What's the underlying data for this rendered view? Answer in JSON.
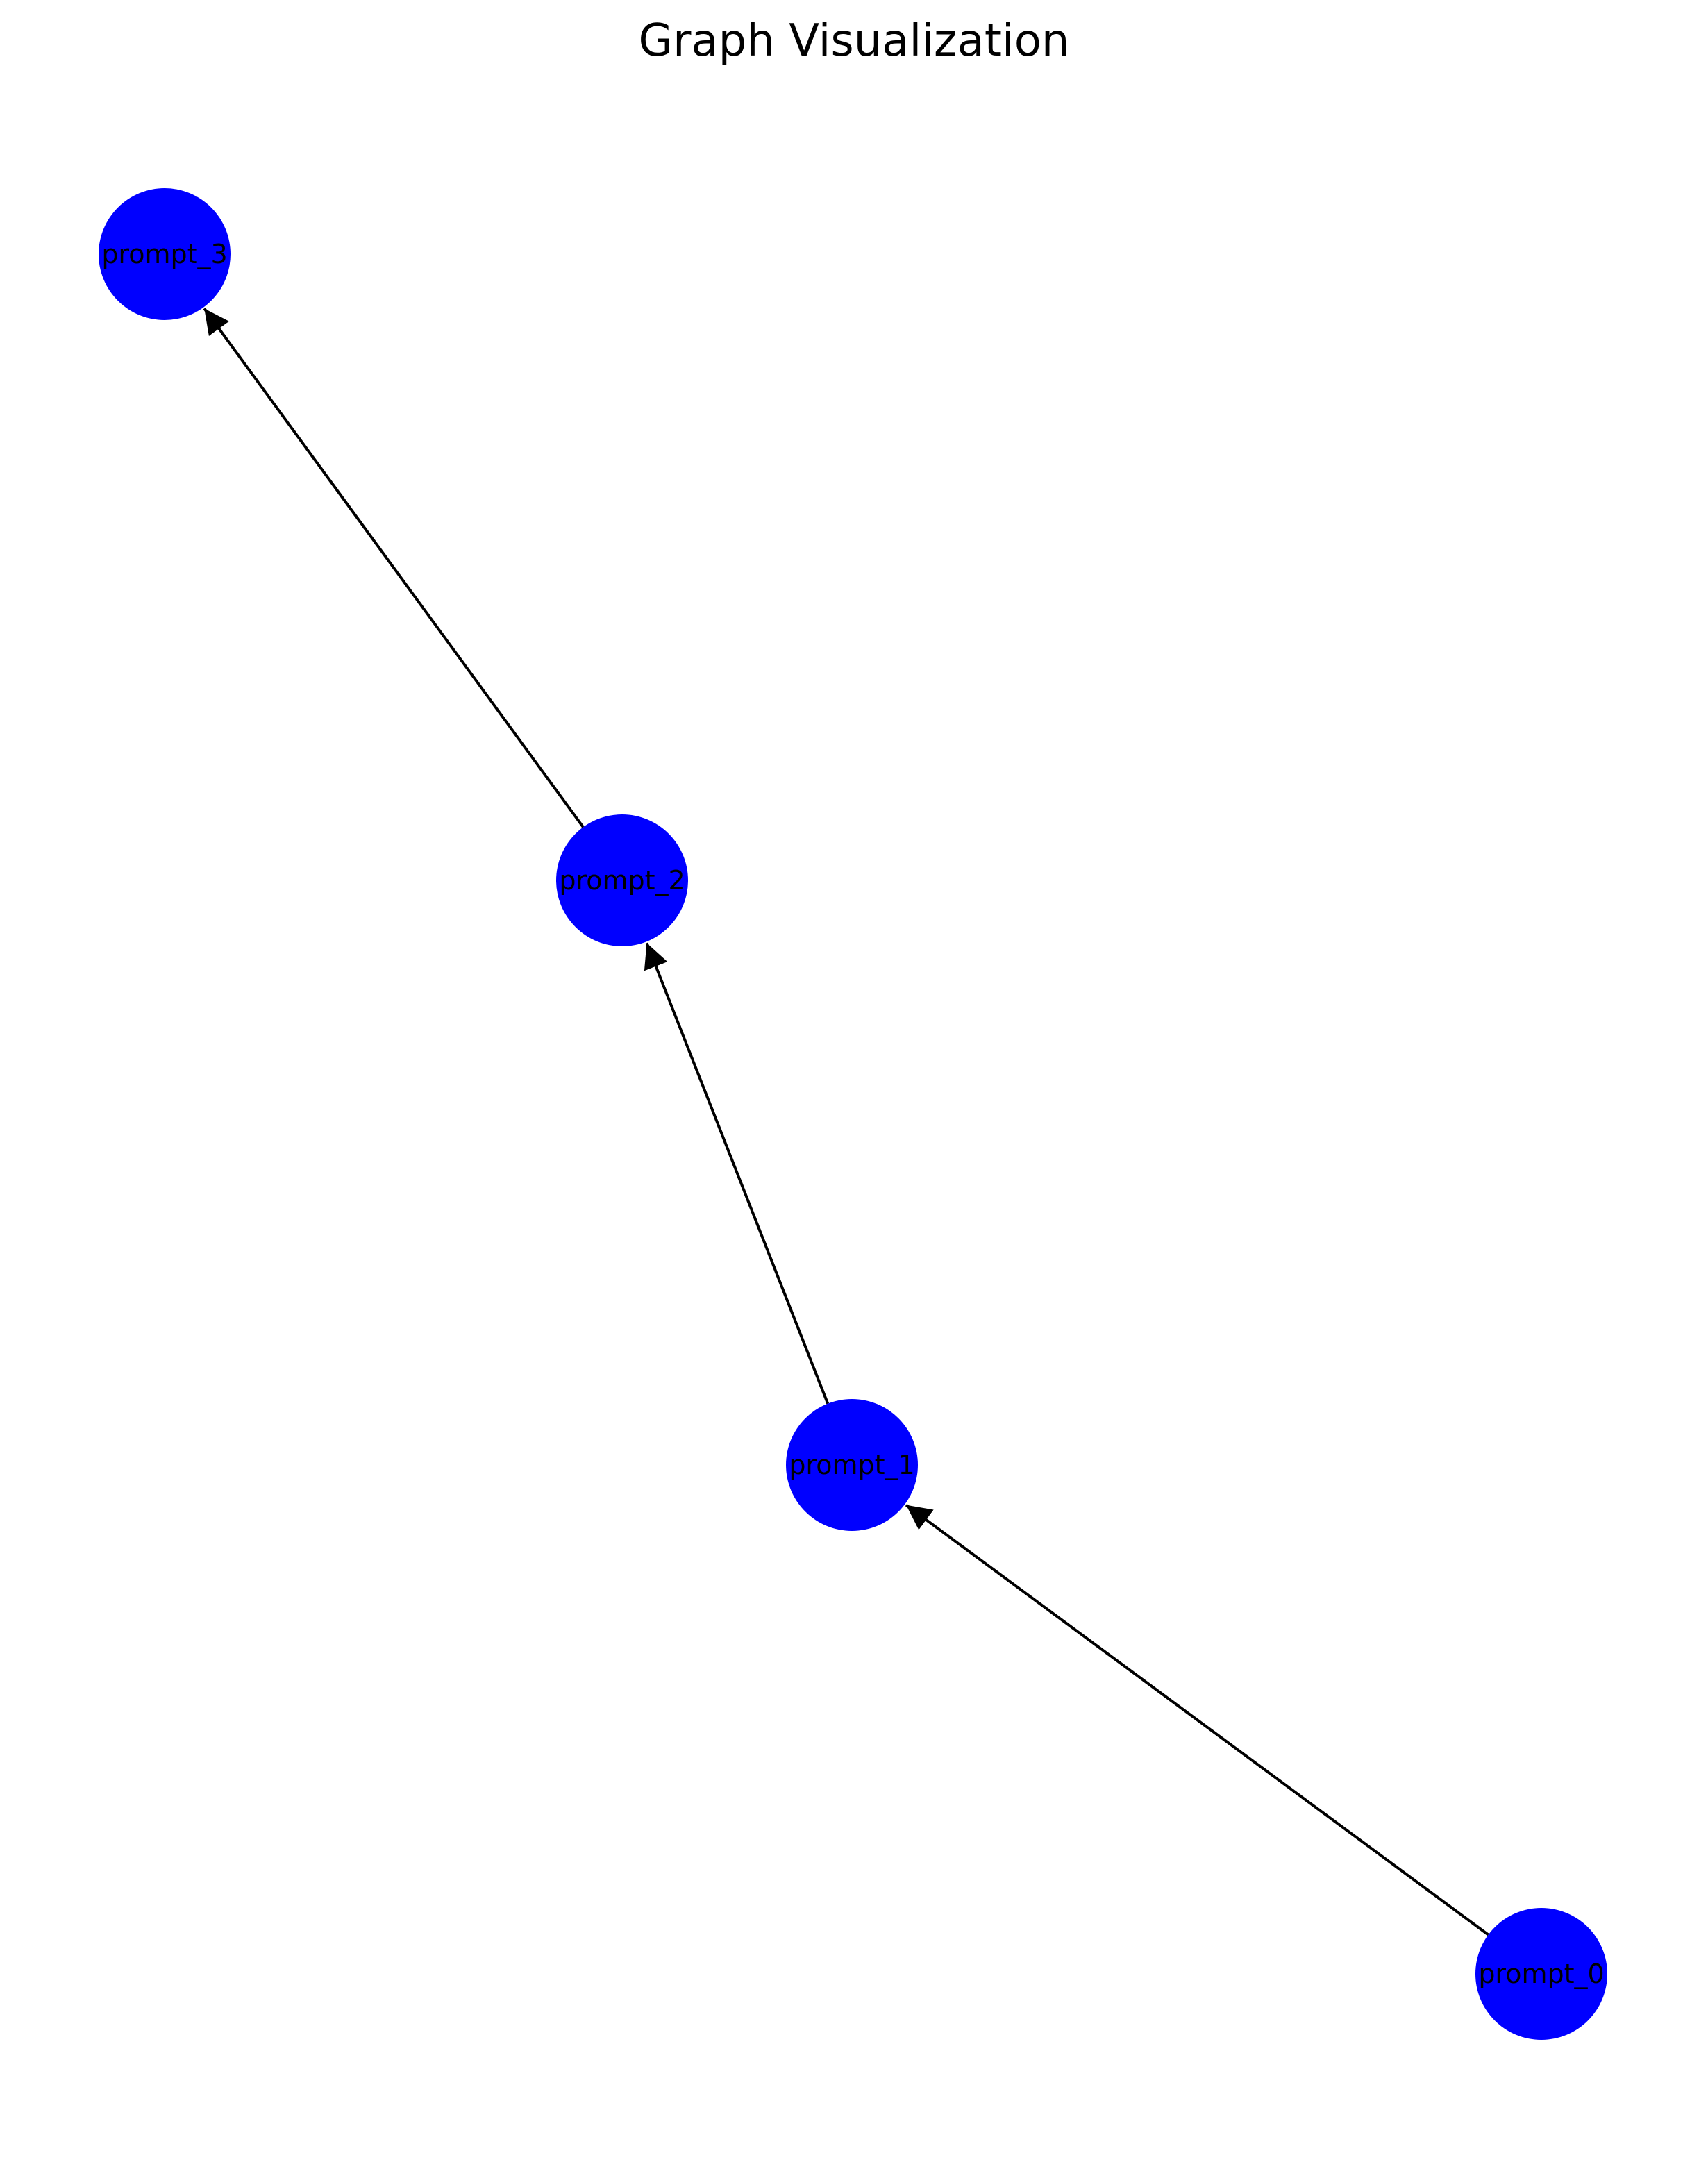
{
  "title": "Graph Visualization",
  "colors": {
    "node_fill": "#0000ff",
    "edge": "#000000",
    "label": "#000000",
    "background": "#ffffff"
  },
  "graph": {
    "directed": true,
    "nodes": [
      {
        "id": "prompt_0",
        "label": "prompt_0"
      },
      {
        "id": "prompt_1",
        "label": "prompt_1"
      },
      {
        "id": "prompt_2",
        "label": "prompt_2"
      },
      {
        "id": "prompt_3",
        "label": "prompt_3"
      }
    ],
    "edges": [
      {
        "from": "prompt_0",
        "to": "prompt_1"
      },
      {
        "from": "prompt_1",
        "to": "prompt_2"
      },
      {
        "from": "prompt_2",
        "to": "prompt_3"
      }
    ]
  }
}
